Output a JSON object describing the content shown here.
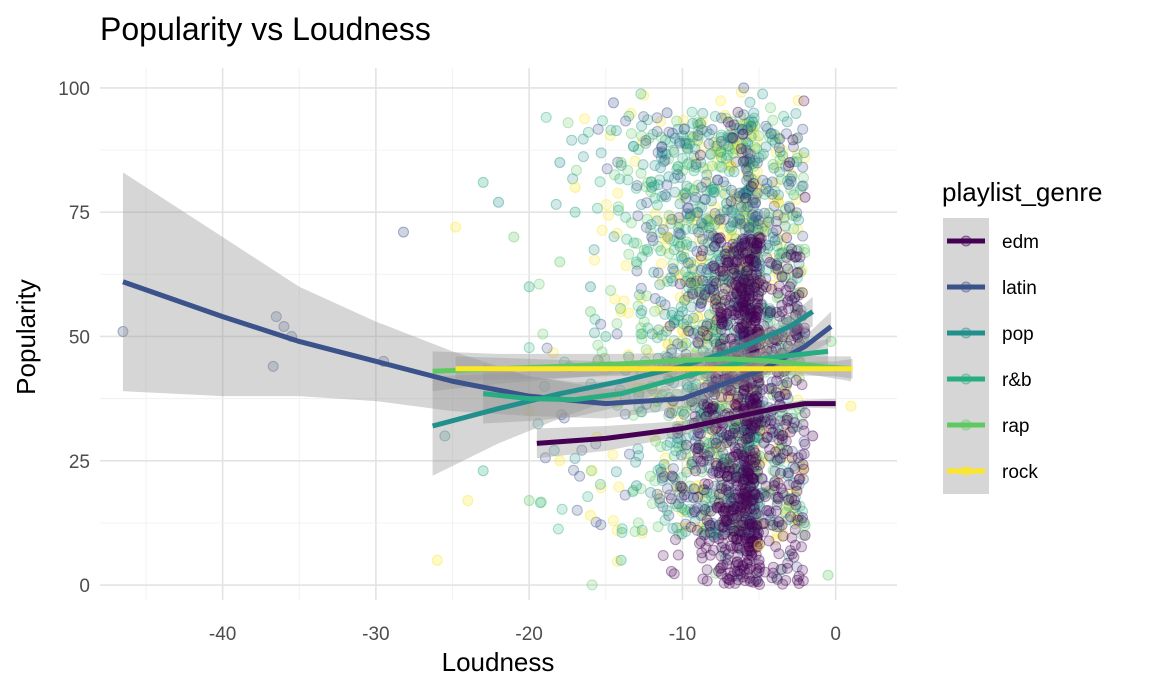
{
  "chart_data": {
    "type": "scatter",
    "title": "Popularity vs Loudness",
    "xlabel": "Loudness",
    "ylabel": "Popularity",
    "xlim": [
      -48,
      4
    ],
    "ylim": [
      -3,
      104
    ],
    "x_ticks": [
      -40,
      -30,
      -20,
      -10,
      0
    ],
    "y_ticks": [
      0,
      25,
      50,
      75,
      100
    ],
    "grid": true,
    "legend": {
      "title": "playlist_genre",
      "position": "right"
    },
    "smoother": "loess with gray confidence band",
    "series": [
      {
        "name": "edm",
        "color": "#440154",
        "trend_x": [
          -19.5,
          -15,
          -10,
          -7,
          -4,
          -2,
          0
        ],
        "trend_y": [
          28.5,
          29.5,
          31.5,
          33.5,
          35.5,
          36.5,
          36.5
        ],
        "band_half": [
          3,
          2.5,
          1.5,
          1,
          0.8,
          0.8,
          1
        ],
        "points": [
          [
            -6,
            50
          ],
          [
            -5,
            35
          ],
          [
            -4,
            20
          ],
          [
            -3,
            60
          ],
          [
            -2,
            10
          ],
          [
            -5,
            70
          ],
          [
            -4,
            45
          ],
          [
            -6,
            25
          ],
          [
            -3,
            85
          ],
          [
            -7,
            40
          ],
          [
            -2.5,
            1
          ],
          [
            -1.5,
            30
          ],
          [
            -5,
            5
          ],
          [
            -3.5,
            55
          ],
          [
            -4.5,
            15
          ],
          [
            -6.5,
            65
          ],
          [
            -2,
            78
          ]
        ]
      },
      {
        "name": "latin",
        "color": "#3b528b",
        "trend_x": [
          -46.5,
          -40,
          -35,
          -30,
          -25,
          -20,
          -15,
          -10,
          -5,
          -2,
          -0.3
        ],
        "trend_y": [
          61,
          54,
          49,
          45,
          41,
          38,
          36.5,
          37.5,
          43,
          48,
          52
        ],
        "band_half": [
          22,
          16,
          11,
          8,
          6,
          4,
          3,
          2,
          1.5,
          2,
          3
        ],
        "points": [
          [
            -46.5,
            51
          ],
          [
            -36.5,
            54
          ],
          [
            -36,
            52
          ],
          [
            -35.5,
            50
          ],
          [
            -36.7,
            44
          ],
          [
            -29.5,
            45
          ],
          [
            -28.2,
            71
          ],
          [
            -14.5,
            97
          ],
          [
            -11,
            95
          ],
          [
            -6,
            100
          ],
          [
            -8,
            60
          ],
          [
            -9,
            30
          ],
          [
            -12,
            70
          ],
          [
            -5,
            40
          ]
        ]
      },
      {
        "name": "pop",
        "color": "#21908c",
        "trend_x": [
          -26.3,
          -22,
          -18,
          -14,
          -10,
          -6,
          -3,
          -1.5
        ],
        "trend_y": [
          32,
          35.5,
          38.5,
          41,
          44,
          48,
          52,
          55
        ],
        "band_half": [
          10,
          7,
          5,
          3,
          2,
          1.5,
          2,
          3
        ],
        "points": [
          [
            -22,
            77
          ],
          [
            -18,
            85
          ],
          [
            -12,
            80
          ],
          [
            -9,
            75
          ],
          [
            -16,
            60
          ],
          [
            -10,
            55
          ],
          [
            -7,
            90
          ],
          [
            -13,
            20
          ],
          [
            -8,
            10
          ],
          [
            -5,
            65
          ],
          [
            -11,
            45
          ],
          [
            -25.5,
            30
          ]
        ]
      },
      {
        "name": "r&b",
        "color": "#27ad81",
        "trend_x": [
          -23,
          -20,
          -17,
          -14,
          -11,
          -8,
          -5,
          -2,
          -0.5
        ],
        "trend_y": [
          38.5,
          37.5,
          37.3,
          38.5,
          41,
          43.5,
          45.5,
          46.5,
          47
        ],
        "band_half": [
          6,
          4.5,
          3.5,
          2.5,
          2,
          1.5,
          1.5,
          2,
          2.5
        ],
        "points": [
          [
            -23,
            81
          ],
          [
            -23,
            23
          ],
          [
            -20,
            60
          ],
          [
            -17,
            75
          ],
          [
            -15,
            50
          ],
          [
            -13,
            65
          ],
          [
            -10,
            35
          ],
          [
            -8,
            80
          ],
          [
            -6,
            45
          ],
          [
            -14,
            5
          ],
          [
            -11,
            15
          ],
          [
            -19,
            40
          ]
        ]
      },
      {
        "name": "rap",
        "color": "#5ec962",
        "trend_x": [
          -26.3,
          -22,
          -18,
          -14,
          -10,
          -7,
          -4,
          -1,
          1
        ],
        "trend_y": [
          43,
          43.5,
          44,
          44.5,
          45.2,
          45.5,
          45,
          44,
          43.5
        ],
        "band_half": [
          4,
          3,
          2.5,
          2,
          1.5,
          1.5,
          1.5,
          2,
          2.5
        ],
        "points": [
          [
            -21,
            70
          ],
          [
            -18,
            65
          ],
          [
            -16,
            55
          ],
          [
            -14,
            85
          ],
          [
            -12,
            40
          ],
          [
            -9,
            60
          ],
          [
            -7,
            25
          ],
          [
            -4,
            50
          ],
          [
            -2,
            12
          ],
          [
            -0.5,
            2
          ],
          [
            -20,
            17
          ],
          [
            -0.3,
            49
          ]
        ]
      },
      {
        "name": "rock",
        "color": "#fde725",
        "trend_x": [
          -24.8,
          -20,
          -15,
          -10,
          -5,
          0,
          1.1
        ],
        "trend_y": [
          43.5,
          43.5,
          43.5,
          43.5,
          43.5,
          43.5,
          43.5
        ],
        "band_half": [
          2.5,
          2,
          1.5,
          1.2,
          1.2,
          1.5,
          2
        ],
        "points": [
          [
            -24.8,
            72
          ],
          [
            -24,
            17
          ],
          [
            -26,
            5
          ],
          [
            -17,
            80
          ],
          [
            -14,
            55
          ],
          [
            -11,
            70
          ],
          [
            -20,
            35
          ],
          [
            -16,
            14
          ],
          [
            -9,
            20
          ],
          [
            -5,
            8
          ],
          [
            1,
            36
          ],
          [
            -18,
            25
          ]
        ]
      }
    ],
    "dense_region": {
      "x_range": [
        -20,
        -1
      ],
      "y_range": [
        0,
        100
      ],
      "peak_x": -5,
      "description_only_for_render": false
    }
  }
}
